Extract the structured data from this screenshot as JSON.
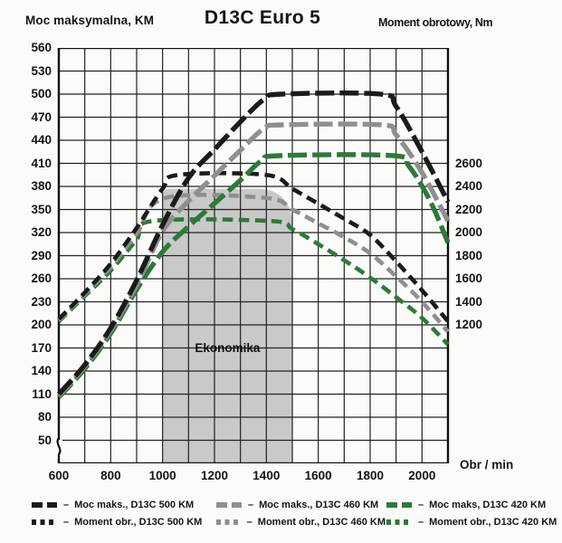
{
  "header": {
    "left_axis_label": "Moc maksymalna, KM",
    "title": "D13C Euro 5",
    "right_axis_label": "Moment obrotowy, Nm"
  },
  "axes": {
    "x_label": "Obr / min",
    "x_ticks": [
      600,
      800,
      1000,
      1200,
      1400,
      1600,
      1800,
      2000
    ],
    "left_ticks": [
      560,
      530,
      500,
      470,
      440,
      410,
      380,
      350,
      320,
      290,
      260,
      230,
      200,
      170,
      140,
      110,
      80,
      50
    ],
    "right_ticks": [
      2600,
      2400,
      2200,
      2000,
      1800,
      1600,
      1400,
      1200
    ]
  },
  "colors": {
    "black": "#1b1b1b",
    "gray": "#8f8f8f",
    "green": "#2c7a38",
    "shade": "#c9c9c9",
    "grid": "#222222",
    "background": "#fbfbf9"
  },
  "economy_zone": {
    "label": "Ekonomika",
    "rpm_start": 1000,
    "rpm_end": 1500,
    "top_nm": 2380
  },
  "legend": {
    "separator": "–",
    "order": [
      "power_500",
      "power_460",
      "power_420",
      "torque_500",
      "torque_460",
      "torque_420"
    ]
  },
  "chart_data": {
    "type": "line",
    "title": "D13C Euro 5",
    "xlabel": "Obr / min",
    "x_range": [
      600,
      2100
    ],
    "grid": {
      "x_step_rpm": 100,
      "left_step_km": 30,
      "right_step_nm": 200,
      "grid_on": true
    },
    "left_axis": {
      "label": "Moc maksymalna, KM",
      "range": [
        50,
        560
      ]
    },
    "right_axis": {
      "label": "Moment obrotowy, Nm",
      "ticks": [
        1200,
        1400,
        1600,
        1800,
        2000,
        2200,
        2400,
        2600
      ]
    },
    "right_axis_alignment": {
      "nm_at_left_200": 1200,
      "nm_per_left_unit": 6.6667
    },
    "series": [
      {
        "key": "torque_420",
        "name": "Moment obr., D13C 420 KM",
        "kind": "torque",
        "unit": "Nm",
        "color_key": "green",
        "points": [
          [
            600,
            1230
          ],
          [
            700,
            1450
          ],
          [
            800,
            1670
          ],
          [
            900,
            1940
          ],
          [
            960,
            2100
          ],
          [
            1420,
            2100
          ],
          [
            1500,
            2030
          ],
          [
            1600,
            1900
          ],
          [
            1700,
            1760
          ],
          [
            1800,
            1610
          ],
          [
            1900,
            1440
          ],
          [
            2000,
            1260
          ],
          [
            2100,
            1030
          ]
        ]
      },
      {
        "key": "torque_460",
        "name": "Moment obr., D13C 460 KM",
        "kind": "torque",
        "unit": "Nm",
        "color_key": "gray",
        "points": [
          [
            600,
            1240
          ],
          [
            700,
            1465
          ],
          [
            800,
            1700
          ],
          [
            900,
            1990
          ],
          [
            1010,
            2300
          ],
          [
            1400,
            2300
          ],
          [
            1500,
            2200
          ],
          [
            1600,
            2080
          ],
          [
            1700,
            1960
          ],
          [
            1800,
            1820
          ],
          [
            1900,
            1620
          ],
          [
            2000,
            1400
          ],
          [
            2100,
            1140
          ]
        ]
      },
      {
        "key": "torque_500",
        "name": "Moment obr., D13C 500 KM",
        "kind": "torque",
        "unit": "Nm",
        "color_key": "black",
        "points": [
          [
            600,
            1250
          ],
          [
            700,
            1480
          ],
          [
            800,
            1730
          ],
          [
            900,
            2040
          ],
          [
            1000,
            2380
          ],
          [
            1060,
            2500
          ],
          [
            1400,
            2500
          ],
          [
            1500,
            2380
          ],
          [
            1600,
            2250
          ],
          [
            1700,
            2120
          ],
          [
            1800,
            1980
          ],
          [
            1900,
            1750
          ],
          [
            2000,
            1500
          ],
          [
            2100,
            1230
          ]
        ]
      },
      {
        "key": "power_420",
        "name": "Moc maks, D13C 420 KM",
        "kind": "power",
        "unit": "KM",
        "color_key": "green",
        "points": [
          [
            600,
            106
          ],
          [
            700,
            143
          ],
          [
            800,
            189
          ],
          [
            900,
            246
          ],
          [
            1000,
            295
          ],
          [
            1100,
            328
          ],
          [
            1200,
            358
          ],
          [
            1300,
            388
          ],
          [
            1380,
            413
          ],
          [
            1450,
            420
          ],
          [
            1890,
            420
          ],
          [
            1950,
            406
          ],
          [
            2030,
            362
          ],
          [
            2100,
            307
          ]
        ]
      },
      {
        "key": "power_460",
        "name": "Moc maks., D13C 460 KM",
        "kind": "power",
        "unit": "KM",
        "color_key": "gray",
        "points": [
          [
            600,
            108
          ],
          [
            700,
            146
          ],
          [
            800,
            193
          ],
          [
            900,
            252
          ],
          [
            1000,
            322
          ],
          [
            1100,
            361
          ],
          [
            1200,
            394
          ],
          [
            1300,
            427
          ],
          [
            1390,
            455
          ],
          [
            1460,
            460
          ],
          [
            1845,
            460
          ],
          [
            1900,
            447
          ],
          [
            2000,
            398
          ],
          [
            2100,
            335
          ]
        ]
      },
      {
        "key": "power_500",
        "name": "Moc maks., D13C 500 KM",
        "kind": "power",
        "unit": "KM",
        "color_key": "black",
        "points": [
          [
            600,
            110
          ],
          [
            700,
            148
          ],
          [
            800,
            196
          ],
          [
            900,
            258
          ],
          [
            1000,
            330
          ],
          [
            1100,
            391
          ],
          [
            1200,
            428
          ],
          [
            1300,
            464
          ],
          [
            1390,
            493
          ],
          [
            1460,
            500
          ],
          [
            1840,
            500
          ],
          [
            1900,
            484
          ],
          [
            2000,
            425
          ],
          [
            2100,
            360
          ]
        ]
      }
    ]
  }
}
